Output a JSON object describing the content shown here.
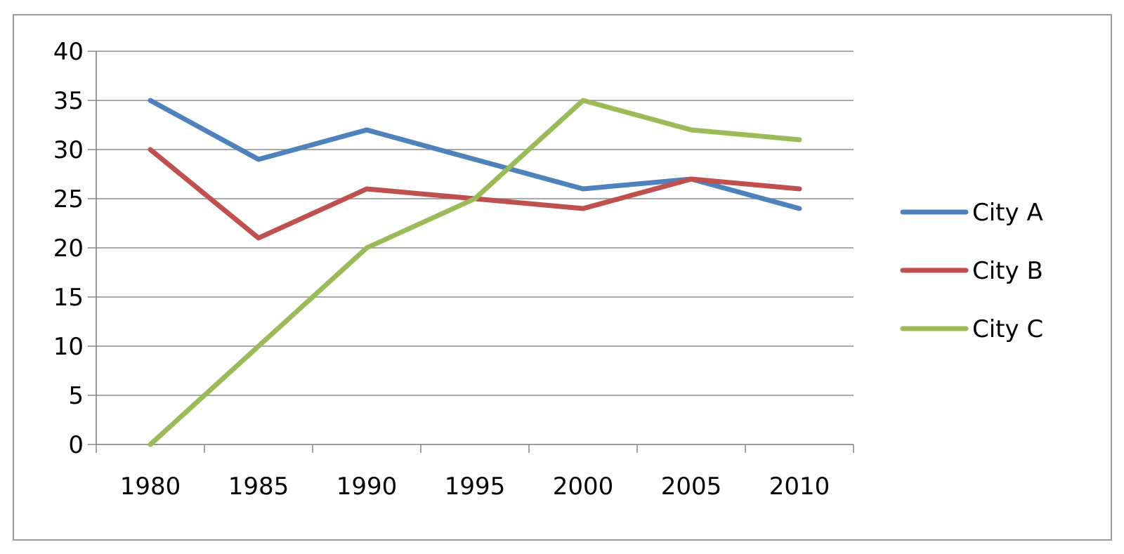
{
  "chart_data": {
    "type": "line",
    "title": "",
    "xlabel": "",
    "ylabel": "",
    "x": [
      "1980",
      "1985",
      "1990",
      "1995",
      "2000",
      "2005",
      "2010"
    ],
    "ylim": [
      0,
      40
    ],
    "yticks": [
      "0",
      "5",
      "10",
      "15",
      "20",
      "25",
      "30",
      "35",
      "40"
    ],
    "grid": "horizontal",
    "legend_position": "right",
    "series": [
      {
        "name": "City A",
        "color": "#4f81bd",
        "values": [
          35,
          29,
          32,
          29,
          26,
          27,
          24
        ]
      },
      {
        "name": "City B",
        "color": "#c0504d",
        "values": [
          30,
          21,
          26,
          25,
          24,
          27,
          26
        ]
      },
      {
        "name": "City C",
        "color": "#9bbb59",
        "values": [
          0,
          10,
          20,
          25,
          35,
          32,
          31
        ]
      }
    ]
  }
}
